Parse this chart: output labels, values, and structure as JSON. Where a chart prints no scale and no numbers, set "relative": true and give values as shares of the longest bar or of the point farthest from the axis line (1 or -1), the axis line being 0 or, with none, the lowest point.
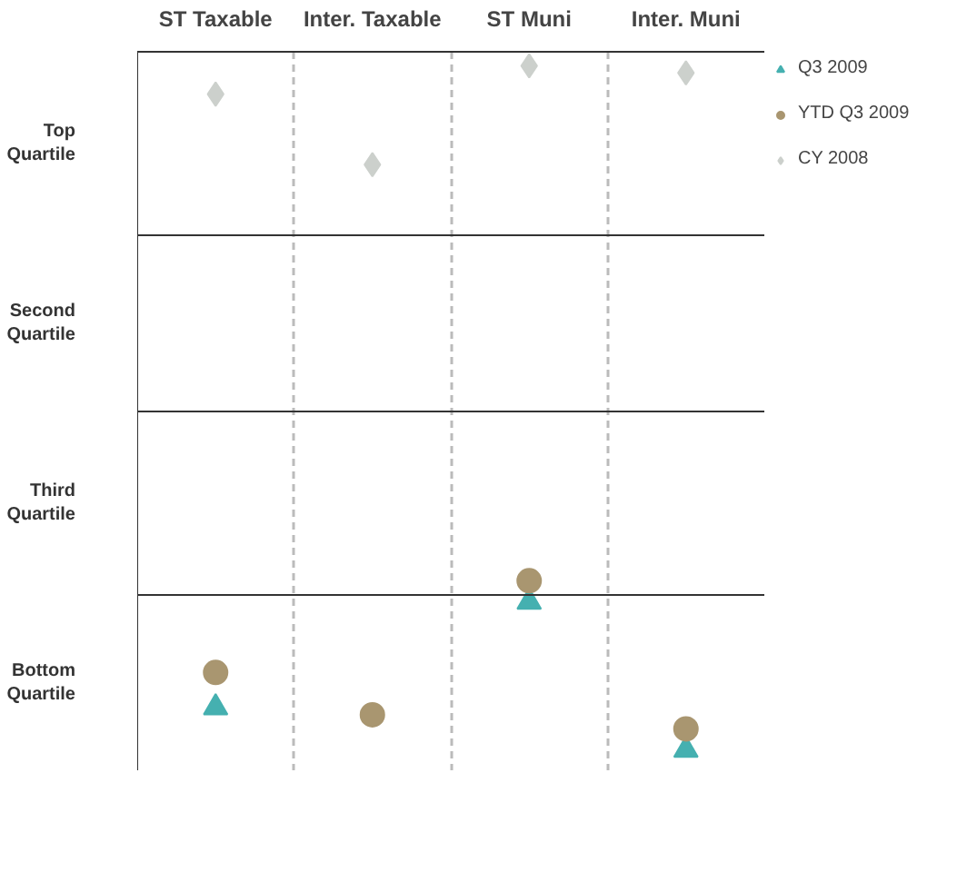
{
  "chart_data": {
    "type": "scatter",
    "relative": true,
    "categories": [
      "ST Taxable",
      "Inter. Taxable",
      "ST Muni",
      "Inter. Muni"
    ],
    "annotations": [
      "Top Quartile",
      "Second Quartile",
      "Third Quartile",
      "Bottom Quartile"
    ],
    "ref_lines": [
      {
        "axis": "y",
        "value": 0.25,
        "label": null
      },
      {
        "axis": "y",
        "value": 0.51,
        "label": null
      },
      {
        "axis": "y",
        "value": 0.76,
        "label": null
      }
    ],
    "grid": "x",
    "legend": "right",
    "series": [
      {
        "name": "Q3 2009",
        "color": "#45b0b0",
        "marker": "triangle",
        "values": [
          0.09,
          null,
          0.24,
          0.03
        ]
      },
      {
        "name": "YTD Q3 2009",
        "color": "#a99670",
        "marker": "circle",
        "values": [
          0.14,
          0.08,
          0.27,
          0.06
        ]
      },
      {
        "name": "CY 2008",
        "color": "#ccd0cc",
        "marker": "diamond",
        "values": [
          0.96,
          0.86,
          1,
          0.99
        ]
      }
    ]
  }
}
